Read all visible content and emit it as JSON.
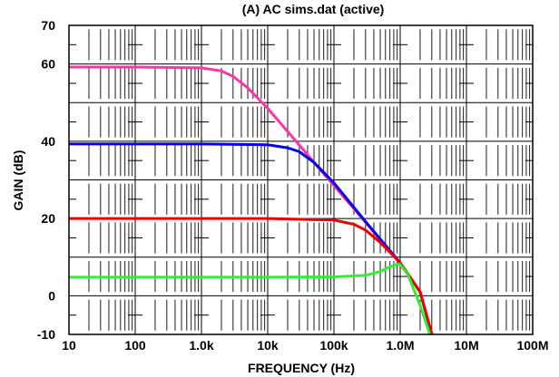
{
  "chart_data": {
    "type": "line",
    "title": "(A) AC sims.dat (active)",
    "xlabel": "FREQUENCY (Hz)",
    "ylabel": "GAIN (dB)",
    "x_scale": "log",
    "xlim": [
      10,
      100000000
    ],
    "ylim": [
      -10,
      70
    ],
    "x_ticks": [
      10,
      100,
      1000,
      10000,
      100000,
      1000000,
      10000000,
      100000000
    ],
    "x_tick_labels": [
      "10",
      "100",
      "1.0k",
      "10k",
      "100k",
      "1.0M",
      "10M",
      "100M"
    ],
    "y_ticks": [
      70,
      60,
      40,
      20,
      0,
      -10
    ],
    "y_tick_labels": [
      "70",
      "60",
      "40",
      "20",
      "0",
      "-10"
    ],
    "grid": true,
    "legend": "none",
    "series": [
      {
        "color": "#ff33aa",
        "x": [
          10,
          100,
          1000,
          2000,
          3000,
          5000,
          10000,
          30000,
          100000,
          300000,
          1000000,
          2000000,
          3000000
        ],
        "y": [
          59.2,
          59.2,
          59.0,
          58.2,
          56.8,
          53.8,
          48.5,
          39.0,
          28.5,
          19.0,
          8.5,
          1.0,
          -10.0
        ]
      },
      {
        "color": "#0000ee",
        "x": [
          10,
          100,
          1000,
          10000,
          20000,
          30000,
          50000,
          100000,
          300000,
          1000000,
          2000000,
          3000000
        ],
        "y": [
          39.3,
          39.3,
          39.3,
          39.1,
          38.3,
          37.3,
          34.5,
          29.2,
          19.2,
          8.5,
          1.0,
          -10.0
        ]
      },
      {
        "color": "#ee0000",
        "x": [
          10,
          100,
          1000,
          10000,
          100000,
          200000,
          300000,
          500000,
          1000000,
          2000000,
          3000000
        ],
        "y": [
          20.0,
          20.0,
          20.0,
          20.0,
          19.6,
          18.5,
          17.0,
          13.8,
          8.5,
          1.0,
          -10.0
        ]
      },
      {
        "color": "#33ee33",
        "x": [
          10,
          100,
          1000,
          10000,
          100000,
          300000,
          500000,
          700000,
          900000,
          1000000,
          1300000,
          2000000,
          2800000
        ],
        "y": [
          4.8,
          4.8,
          4.8,
          4.8,
          4.9,
          5.3,
          6.3,
          7.5,
          8.2,
          8.1,
          5.5,
          -2.5,
          -10.0
        ]
      }
    ]
  }
}
